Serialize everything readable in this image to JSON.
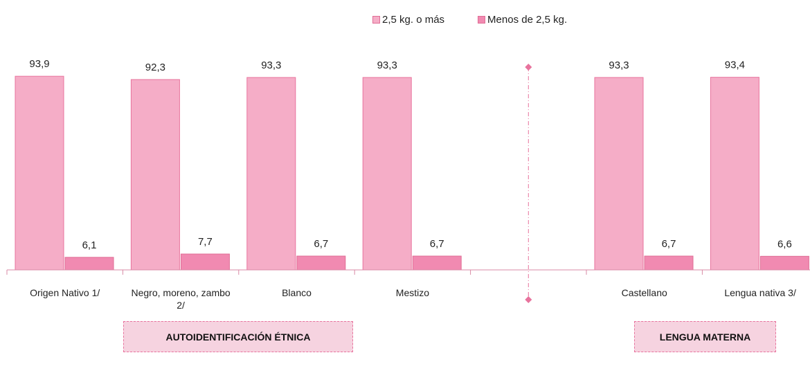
{
  "chart_data": {
    "type": "bar",
    "categories": [
      "Origen Nativo 1/",
      "Negro, moreno, zambo 2/",
      "Blanco",
      "Mestizo",
      "",
      "Castellano",
      "Lengua nativa 3/"
    ],
    "series": [
      {
        "name": "2,5 kg. o más",
        "values": [
          93.9,
          92.3,
          93.3,
          93.3,
          null,
          93.3,
          93.4
        ],
        "labels": [
          "93,9",
          "92,3",
          "93,3",
          "93,3",
          "",
          "93,3",
          "93,4"
        ],
        "color": "#f5adc7"
      },
      {
        "name": "Menos de 2,5 kg.",
        "values": [
          6.1,
          7.7,
          6.7,
          6.7,
          null,
          6.7,
          6.6
        ],
        "labels": [
          "6,1",
          "7,7",
          "6,7",
          "6,7",
          "",
          "6,7",
          "6,6"
        ],
        "color": "#f18ab1"
      }
    ],
    "ylim": [
      0,
      100
    ],
    "grid": false,
    "legend_position": "top",
    "groups": [
      "AUTOIDENTIFICACIÓN ÉTNICA",
      "LENGUA MATERNA"
    ]
  }
}
